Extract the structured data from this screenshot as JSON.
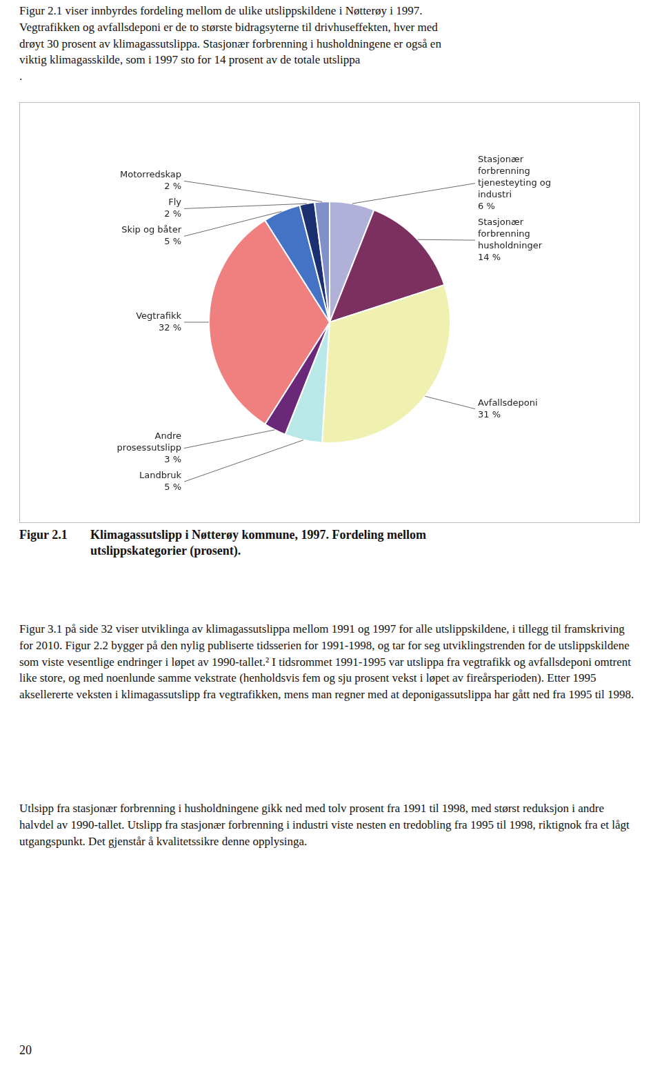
{
  "intro_text": "Figur 2.1 viser innbyrdes fordeling mellom de ulike utslippskildene i Nøtterøy i 1997.\nVegtrafikken og avfallsdeponi er de to største bidragsyterne til drivhuseffekten, hver med\ndrøyt 30 prosent av klimagassutslippa. Stasjonær forbrenning i husholdningene er også en\nviktig klimagasskilde, som i 1997 sto for 14 prosent av de totale utslippa\n.",
  "chart_data": {
    "type": "pie",
    "title": "Klimagassutslipp i Nøtterøy kommune, 1997. Fordeling mellom\nutslippskategorier (prosent).",
    "categories": [
      "Stasjonær\nforbrenning\ntjenesteyting og\nindustri",
      "Stasjonær\nforbrenning\nhusholdninger",
      "Avfallsdeponi",
      "Landbruk",
      "Andre\nprosessutslipp",
      "Vegtrafikk",
      "Skip og båter",
      "Fly",
      "Motorredskap"
    ],
    "values": [
      6,
      14,
      31,
      5,
      3,
      32,
      5,
      2,
      2
    ],
    "value_labels": [
      "6 %",
      "14 %",
      "31 %",
      "5 %",
      "3 %",
      "32 %",
      "5 %",
      "2 %",
      "2 %"
    ],
    "colors": [
      "#b0b0d8",
      "#7b3060",
      "#f0f0b0",
      "#b8e8e8",
      "#6b2878",
      "#f08080",
      "#4472c4",
      "#1a3070",
      "#8090c8"
    ],
    "data_labels": true
  },
  "figure_number": "Figur 2.1",
  "body_text": [
    "Figur 3.1 på side 32 viser utviklinga av klimagassutslippa mellom 1991 og 1997 for alle utslippskildene, i tillegg til framskriving for 2010. Figur 2.2 bygger på den nylig publiserte tidsserien for 1991-1998, og tar for seg utviklingstrenden for de utslippskildene som viste vesentlige endringer i løpet av 1990-tallet.² I tidsrommet 1991-1995 var utslippa fra vegtrafikk og avfallsdeponi omtrent like store, og med noenlunde samme vekstrate (henholdsvis fem og sju prosent vekst i løpet av fireårsperioden). Etter 1995 aksellererte veksten i klimagassutslipp fra vegtrafikken, mens man regner med at deponigassutslippa har gått ned fra 1995 til 1998.",
    "Utlsipp fra stasjonær forbrenning i husholdningene gikk ned med tolv prosent fra 1991 til 1998, med størst reduksjon i andre halvdel av 1990-tallet. Utslipp fra stasjonær forbrenning i industri viste nesten en tredobling fra 1995 til 1998, riktignok fra et lågt utgangspunkt. Det gjenstår å kvalitetssikre denne opplysinga."
  ],
  "page_number": "20"
}
